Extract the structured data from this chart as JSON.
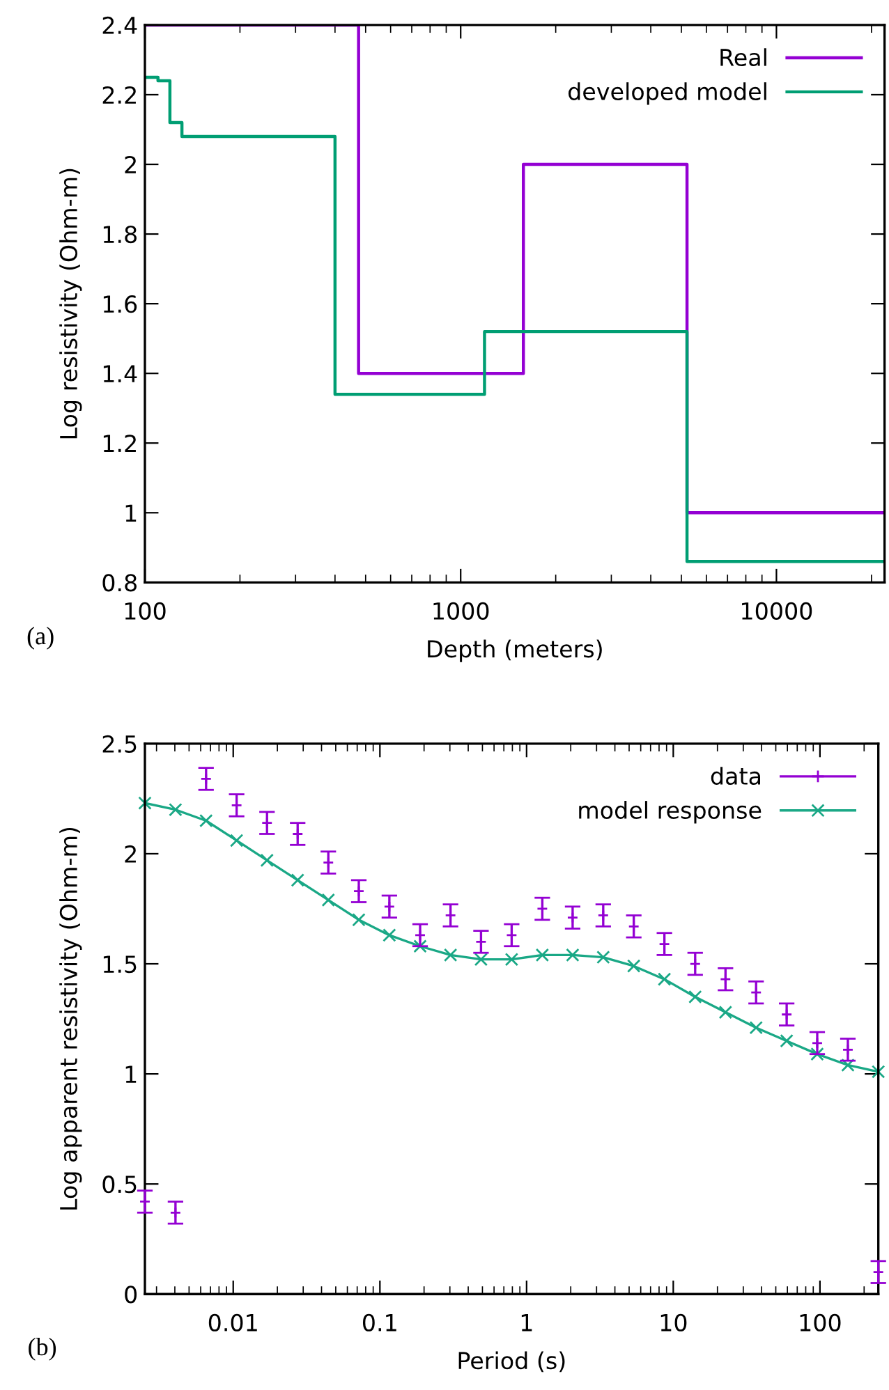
{
  "chart_data": [
    {
      "type": "step",
      "xlabel": "Depth (meters)",
      "ylabel": "Log resistivity (Ohm-m)",
      "log": "x",
      "xlim": [
        100,
        22000
      ],
      "ylim": [
        0.8,
        2.4
      ],
      "xticks": [
        100,
        1000,
        10000
      ],
      "yticks": [
        0.8,
        1,
        1.2,
        1.4,
        1.6,
        1.8,
        2,
        2.2,
        2.4
      ],
      "grid": false,
      "legend": "top right",
      "annotations": [
        "(a)"
      ],
      "series": [
        {
          "name": "Real",
          "color": "#9400d3",
          "x": [
            100,
            475,
            1580,
            5210,
            22000
          ],
          "values": [
            2.4,
            1.4,
            2,
            1,
            1
          ]
        },
        {
          "name": "developed model",
          "color": "#009e73",
          "x": [
            100,
            110,
            120,
            131,
            400,
            1190,
            5210,
            22000
          ],
          "values": [
            2.25,
            2.24,
            2.12,
            2.08,
            1.34,
            1.52,
            0.86,
            0.86
          ]
        }
      ]
    },
    {
      "type": "scatter",
      "xlabel": "Period (s)",
      "ylabel": "Log apparent resistivity (Ohm-m)",
      "log": "x",
      "xlim": [
        0.0025,
        250
      ],
      "ylim": [
        0,
        2.5
      ],
      "xticks": [
        0.01,
        0.1,
        1,
        10,
        100
      ],
      "yticks": [
        0,
        0.5,
        1,
        1.5,
        2,
        2.5
      ],
      "grid": false,
      "legend": "top right",
      "annotations": [
        "(b)"
      ],
      "series": [
        {
          "name": "data",
          "type": "scatter",
          "color": "#9400d3",
          "marker": "cross",
          "x": [
            0.0025,
            0.00404,
            0.00653,
            0.01055,
            0.017,
            0.0275,
            0.0445,
            0.0718,
            0.116,
            0.188,
            0.303,
            0.489,
            0.791,
            1.28,
            2.06,
            3.33,
            5.38,
            8.7,
            14.1,
            22.7,
            36.7,
            59.3,
            95.8,
            155,
            250
          ],
          "values": [
            0.42,
            0.37,
            2.34,
            2.22,
            2.14,
            2.09,
            1.96,
            1.83,
            1.76,
            1.63,
            1.72,
            1.6,
            1.63,
            1.75,
            1.71,
            1.72,
            1.67,
            1.59,
            1.5,
            1.43,
            1.37,
            1.27,
            1.14,
            1.11,
            0.1
          ],
          "errors": [
            0.05,
            0.05,
            0.05,
            0.05,
            0.05,
            0.05,
            0.05,
            0.05,
            0.05,
            0.05,
            0.05,
            0.05,
            0.05,
            0.05,
            0.05,
            0.05,
            0.05,
            0.05,
            0.05,
            0.05,
            0.05,
            0.05,
            0.05,
            0.05,
            0.05
          ]
        },
        {
          "name": "model response",
          "type": "line",
          "color": "#1aa886",
          "marker": "cross",
          "line_style": "solid",
          "x": [
            0.0025,
            0.00404,
            0.00653,
            0.01055,
            0.017,
            0.0275,
            0.0445,
            0.0718,
            0.116,
            0.188,
            0.303,
            0.489,
            0.791,
            1.28,
            2.06,
            3.33,
            5.38,
            8.7,
            14.1,
            22.7,
            36.7,
            59.3,
            95.8,
            155,
            250
          ],
          "values": [
            2.23,
            2.2,
            2.15,
            2.06,
            1.97,
            1.88,
            1.79,
            1.7,
            1.63,
            1.58,
            1.54,
            1.52,
            1.52,
            1.54,
            1.54,
            1.53,
            1.49,
            1.43,
            1.35,
            1.28,
            1.21,
            1.15,
            1.09,
            1.04,
            1.01
          ]
        }
      ]
    }
  ]
}
